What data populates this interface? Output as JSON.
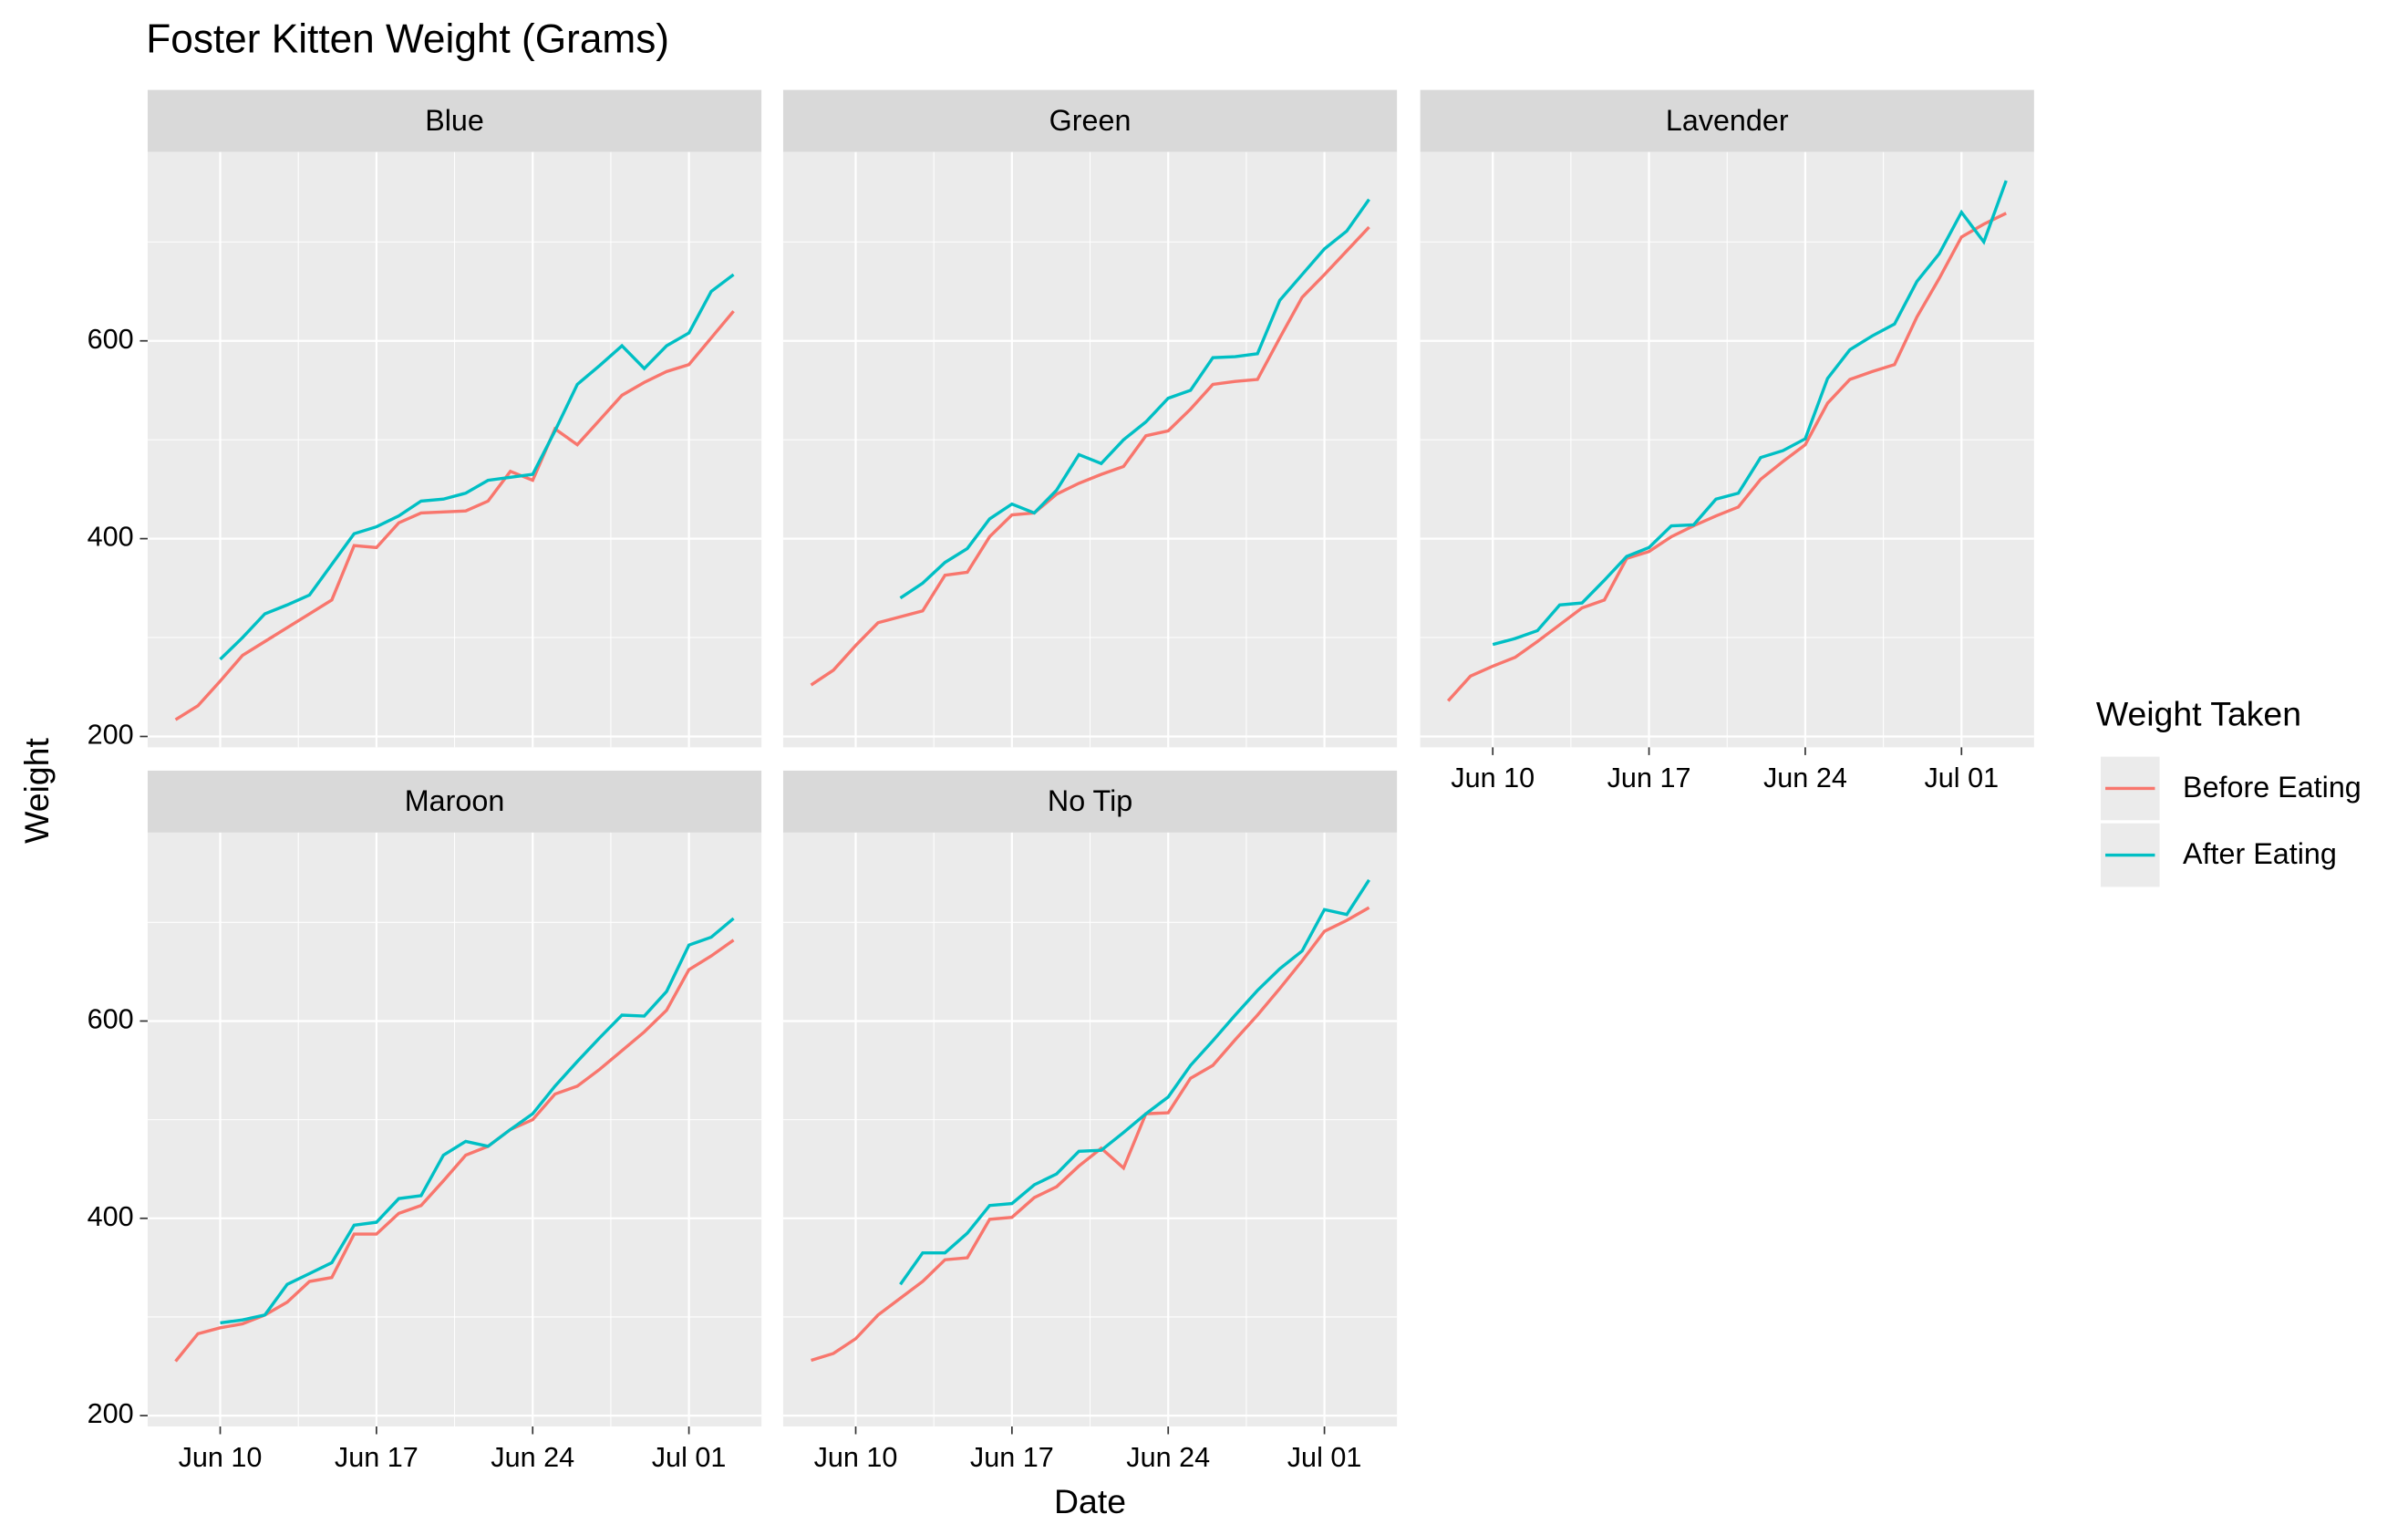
{
  "chart_data": {
    "type": "line",
    "title": "Foster Kitten Weight (Grams)",
    "xlabel": "Date",
    "ylabel": "Weight",
    "legend_title": "Weight Taken",
    "x": [
      "06-08",
      "06-09",
      "06-10",
      "06-11",
      "06-12",
      "06-13",
      "06-14",
      "06-15",
      "06-16",
      "06-17",
      "06-18",
      "06-19",
      "06-20",
      "06-21",
      "06-22",
      "06-23",
      "06-24",
      "06-25",
      "06-26",
      "06-27",
      "06-28",
      "06-29",
      "06-30",
      "07-01",
      "07-02",
      "07-03"
    ],
    "xticks": [
      {
        "value": "06-10",
        "label": "Jun 10"
      },
      {
        "value": "06-17",
        "label": "Jun 17"
      },
      {
        "value": "06-24",
        "label": "Jun 24"
      },
      {
        "value": "07-01",
        "label": "Jul 01"
      }
    ],
    "ylim": [
      189,
      791
    ],
    "yticks": [
      200,
      400,
      600
    ],
    "grid": true,
    "facets": [
      {
        "title": "Blue",
        "series": [
          {
            "name": "Before Eating",
            "color": "#F8766D",
            "values": [
              217,
              231,
              256,
              282,
              296,
              310,
              324,
              338,
              393,
              391,
              416,
              426,
              427,
              428,
              438,
              468,
              459,
              511,
              495,
              520,
              545,
              558,
              569,
              576,
              603,
              630
            ]
          },
          {
            "name": "After Eating",
            "color": "#00BFC4",
            "values": [
              null,
              null,
              278,
              300,
              324,
              333,
              343,
              374,
              405,
              412,
              423,
              438,
              440,
              446,
              459,
              462,
              465,
              509,
              556,
              575,
              595,
              572,
              595,
              608,
              650,
              667
            ]
          }
        ]
      },
      {
        "title": "Green",
        "series": [
          {
            "name": "Before Eating",
            "color": "#F8766D",
            "values": [
              252,
              267,
              292,
              315,
              321,
              327,
              363,
              366,
              402,
              424,
              426,
              445,
              456,
              465,
              473,
              504,
              509,
              531,
              556,
              559,
              561,
              603,
              644,
              667,
              691,
              715
            ]
          },
          {
            "name": "After Eating",
            "color": "#00BFC4",
            "values": [
              null,
              null,
              null,
              null,
              340,
              355,
              376,
              390,
              420,
              435,
              426,
              449,
              485,
              476,
              500,
              518,
              542,
              550,
              583,
              584,
              587,
              641,
              667,
              693,
              711,
              743
            ]
          }
        ]
      },
      {
        "title": "Lavender",
        "series": [
          {
            "name": "Before Eating",
            "color": "#F8766D",
            "values": [
              236,
              261,
              271,
              280,
              296,
              313,
              330,
              338,
              380,
              387,
              402,
              413,
              423,
              432,
              460,
              478,
              495,
              537,
              561,
              569,
              576,
              624,
              663,
              705,
              718,
              729
            ]
          },
          {
            "name": "After Eating",
            "color": "#00BFC4",
            "values": [
              null,
              null,
              293,
              299,
              307,
              333,
              335,
              358,
              382,
              391,
              413,
              414,
              440,
              446,
              482,
              489,
              501,
              562,
              591,
              605,
              617,
              660,
              688,
              730,
              700,
              762
            ]
          }
        ]
      },
      {
        "title": "Maroon",
        "series": [
          {
            "name": "Before Eating",
            "color": "#F8766D",
            "values": [
              255,
              283,
              289,
              293,
              302,
              315,
              336,
              340,
              384,
              384,
              405,
              413,
              438,
              464,
              473,
              490,
              500,
              526,
              534,
              551,
              570,
              589,
              611,
              652,
              666,
              682
            ]
          },
          {
            "name": "After Eating",
            "color": "#00BFC4",
            "values": [
              null,
              null,
              294,
              297,
              302,
              333,
              344,
              355,
              393,
              396,
              420,
              423,
              464,
              478,
              473,
              490,
              506,
              534,
              559,
              583,
              606,
              605,
              630,
              677,
              685,
              704
            ]
          }
        ]
      },
      {
        "title": "No Tip",
        "series": [
          {
            "name": "Before Eating",
            "color": "#F8766D",
            "values": [
              256,
              263,
              278,
              302,
              319,
              336,
              358,
              360,
              399,
              401,
              421,
              432,
              453,
              471,
              451,
              506,
              507,
              542,
              555,
              581,
              606,
              633,
              661,
              691,
              702,
              715
            ]
          },
          {
            "name": "After Eating",
            "color": "#00BFC4",
            "values": [
              null,
              null,
              null,
              null,
              333,
              365,
              365,
              385,
              413,
              415,
              434,
              445,
              468,
              469,
              487,
              506,
              523,
              555,
              580,
              606,
              631,
              653,
              671,
              713,
              708,
              743
            ]
          }
        ]
      }
    ]
  }
}
